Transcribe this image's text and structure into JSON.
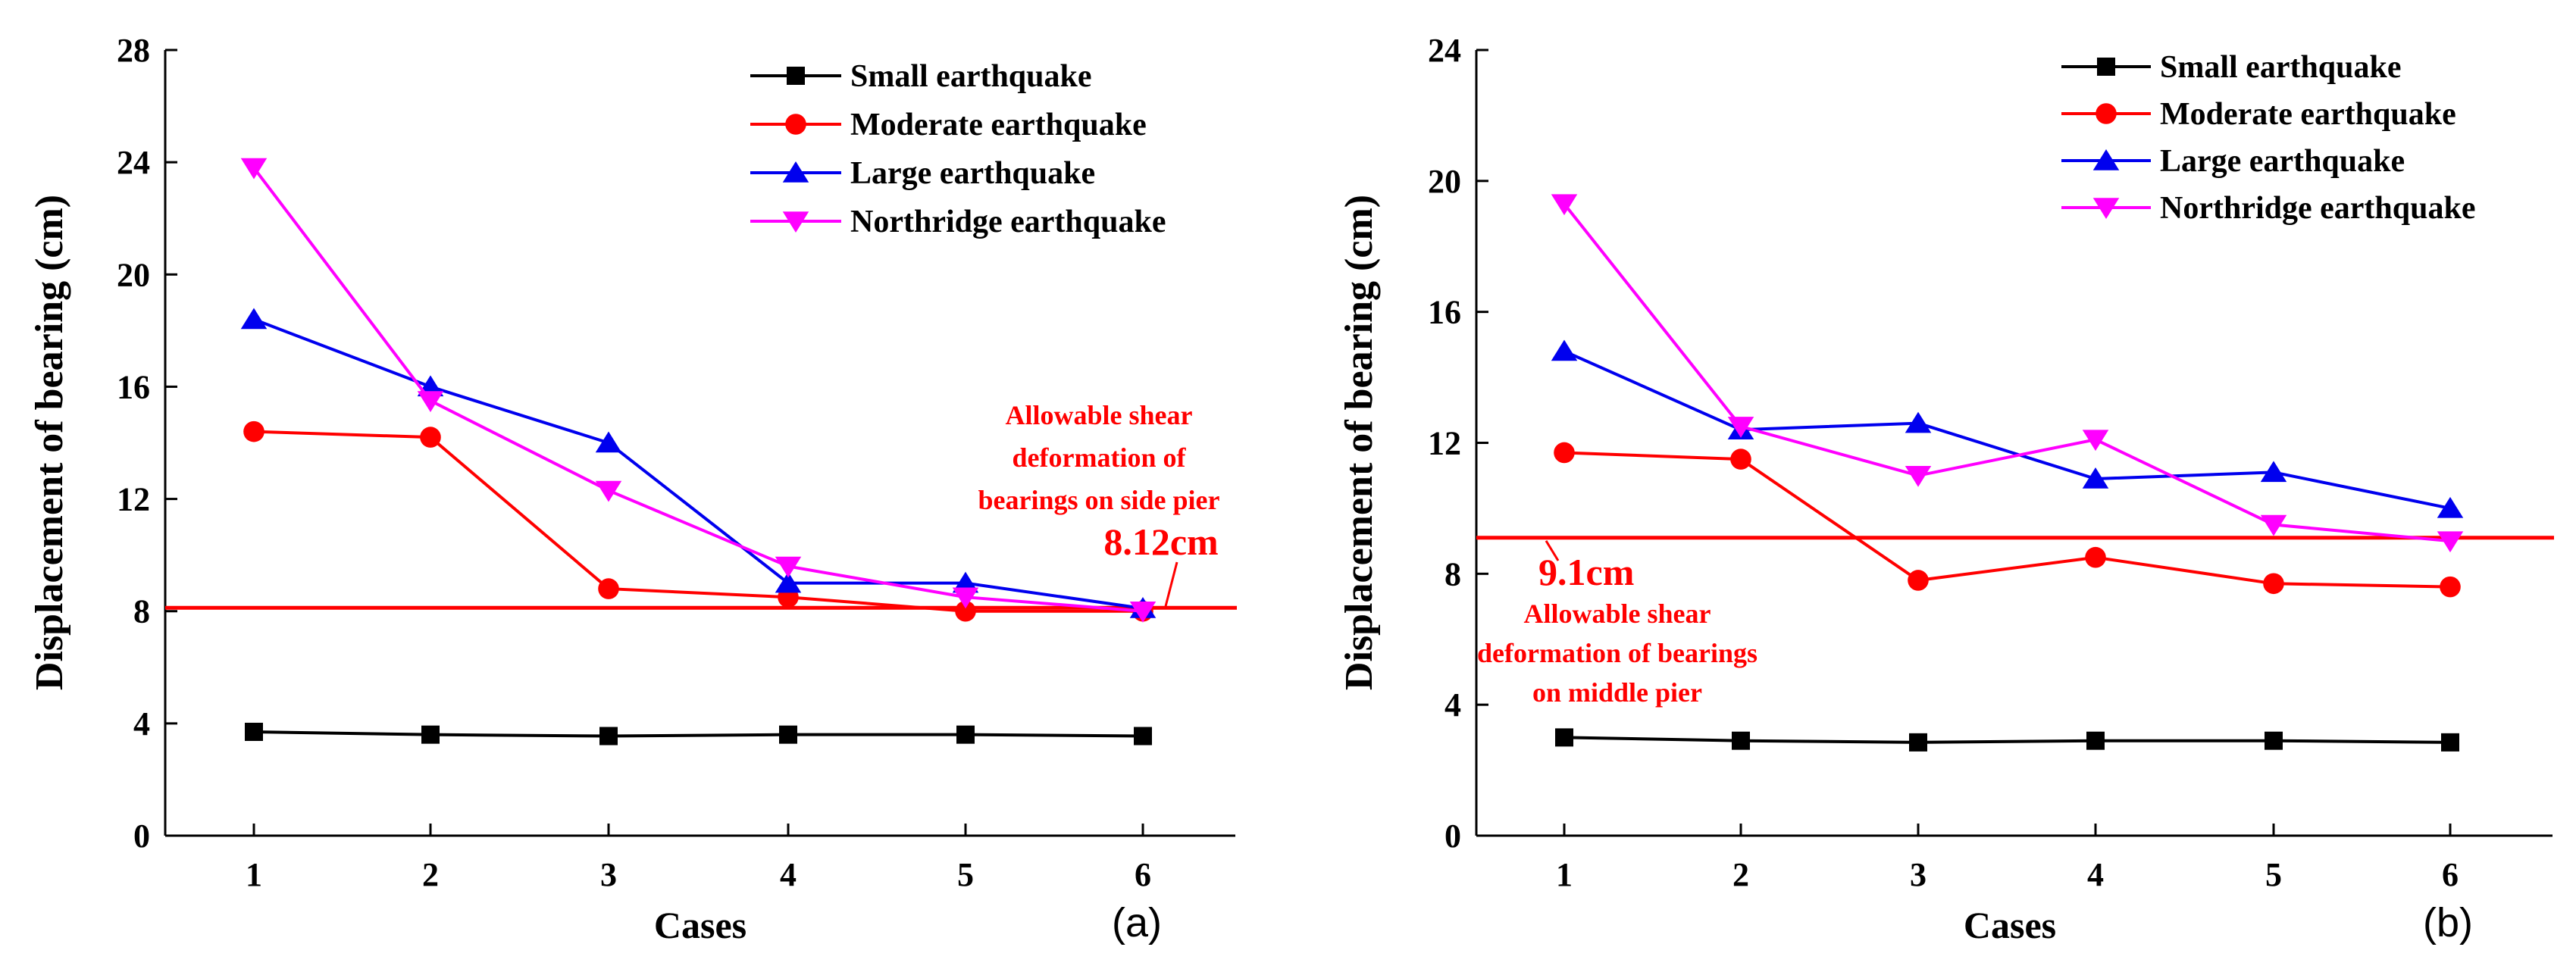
{
  "chart_data": [
    {
      "type": "line",
      "panel_label": "(a)",
      "xlabel": "Cases",
      "ylabel": "Displacement of bearing (cm)",
      "categories": [
        1,
        2,
        3,
        4,
        5,
        6
      ],
      "xlim": [
        0.5,
        6.5
      ],
      "ylim": [
        0,
        28
      ],
      "yticks": [
        0,
        4,
        8,
        12,
        16,
        20,
        24,
        28
      ],
      "legend_position": "top-right",
      "series": [
        {
          "name": "Small earthquake",
          "color": "#000000",
          "marker": "square",
          "values": [
            3.7,
            3.6,
            3.55,
            3.6,
            3.6,
            3.55
          ]
        },
        {
          "name": "Moderate earthquake",
          "color": "#ff0000",
          "marker": "circle",
          "values": [
            14.4,
            14.2,
            8.8,
            8.5,
            8.0,
            8.0
          ]
        },
        {
          "name": "Large earthquake",
          "color": "#0000ee",
          "marker": "triangle-up",
          "values": [
            18.4,
            16.0,
            14.0,
            9.0,
            9.0,
            8.1
          ]
        },
        {
          "name": "Northridge earthquake",
          "color": "#ff00ff",
          "marker": "triangle-down",
          "values": [
            23.8,
            15.5,
            12.3,
            9.6,
            8.5,
            8.0
          ]
        }
      ],
      "reference_line": {
        "value": 8.12,
        "color": "#ff0000",
        "label": "8.12cm",
        "note": [
          "Allowable shear",
          "deformation of",
          "bearings on side pier"
        ]
      }
    },
    {
      "type": "line",
      "panel_label": "(b)",
      "xlabel": "Cases",
      "ylabel": "Displacement of bearing (cm)",
      "categories": [
        1,
        2,
        3,
        4,
        5,
        6
      ],
      "xlim": [
        0.5,
        6.5
      ],
      "ylim": [
        0,
        24
      ],
      "yticks": [
        0,
        4,
        8,
        12,
        16,
        20,
        24
      ],
      "legend_position": "top-right",
      "series": [
        {
          "name": "Small earthquake",
          "color": "#000000",
          "marker": "square",
          "values": [
            3.0,
            2.9,
            2.85,
            2.9,
            2.9,
            2.85
          ]
        },
        {
          "name": "Moderate earthquake",
          "color": "#ff0000",
          "marker": "circle",
          "values": [
            11.7,
            11.5,
            7.8,
            8.5,
            7.7,
            7.6
          ]
        },
        {
          "name": "Large earthquake",
          "color": "#0000ee",
          "marker": "triangle-up",
          "values": [
            14.8,
            12.4,
            12.6,
            10.9,
            11.1,
            10.0
          ]
        },
        {
          "name": "Northridge earthquake",
          "color": "#ff00ff",
          "marker": "triangle-down",
          "values": [
            19.3,
            12.5,
            11.0,
            12.1,
            9.5,
            9.0
          ]
        }
      ],
      "reference_line": {
        "value": 9.1,
        "color": "#ff0000",
        "label": "9.1cm",
        "note": [
          "Allowable shear",
          "deformation of bearings",
          "on middle pier"
        ]
      }
    }
  ]
}
